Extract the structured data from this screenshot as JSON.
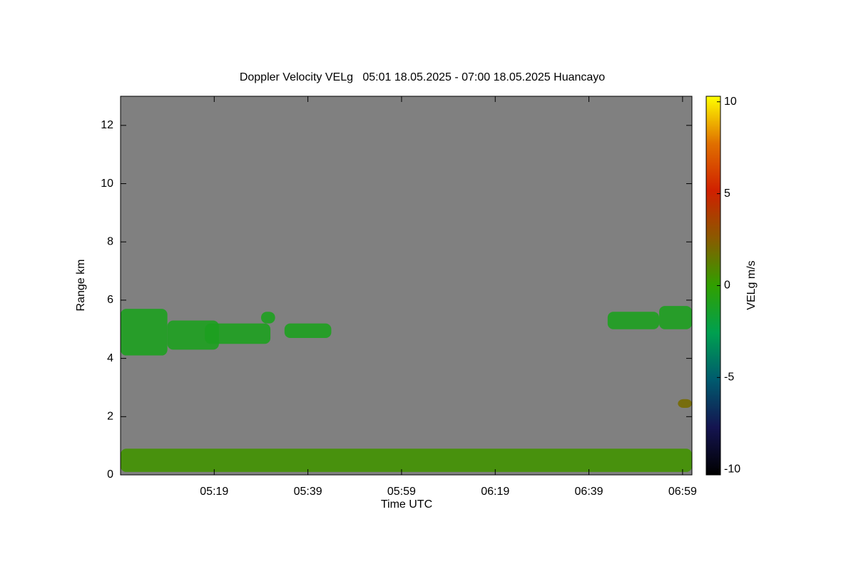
{
  "chart_data": {
    "type": "heatmap",
    "title": "Doppler Velocity VELg   05:01 18.05.2025 - 07:00 18.05.2025 Huancayo",
    "x_label": "Time UTC",
    "y_label": "Range km",
    "colorbar_label": "VELg m/s",
    "xlim": [
      299,
      421
    ],
    "xticks": [
      {
        "value": 319,
        "label": "05:19"
      },
      {
        "value": 339,
        "label": "05:39"
      },
      {
        "value": 359,
        "label": "05:59"
      },
      {
        "value": 379,
        "label": "06:19"
      },
      {
        "value": 399,
        "label": "06:39"
      },
      {
        "value": 419,
        "label": "06:59"
      }
    ],
    "ylim": [
      0,
      13
    ],
    "yticks": [
      0,
      2,
      4,
      6,
      8,
      10,
      12
    ],
    "clim": [
      -10.3,
      10.3
    ],
    "cticks": [
      10,
      5,
      0,
      -5,
      -10
    ],
    "background": "#808080",
    "colormap": [
      "#000000",
      "#141450",
      "#005a6e",
      "#00a050",
      "#30a000",
      "#8a5a00",
      "#d02000",
      "#e07000",
      "#ffff00"
    ],
    "echoes": [
      {
        "x": [
          299,
          309
        ],
        "y": [
          4.1,
          5.7
        ],
        "value": -1
      },
      {
        "x": [
          309,
          320
        ],
        "y": [
          4.3,
          5.3
        ],
        "value": -1
      },
      {
        "x": [
          317,
          331
        ],
        "y": [
          4.5,
          5.2
        ],
        "value": -1
      },
      {
        "x": [
          329,
          332
        ],
        "y": [
          5.2,
          5.6
        ],
        "value": -1
      },
      {
        "x": [
          334,
          344
        ],
        "y": [
          4.7,
          5.2
        ],
        "value": -1
      },
      {
        "x": [
          403,
          414
        ],
        "y": [
          5.0,
          5.6
        ],
        "value": -1
      },
      {
        "x": [
          414,
          421
        ],
        "y": [
          5.0,
          5.8
        ],
        "value": -1
      },
      {
        "x": [
          418,
          421
        ],
        "y": [
          2.3,
          2.6
        ],
        "value": 2
      },
      {
        "x": [
          299,
          421
        ],
        "y": [
          0.1,
          0.9
        ],
        "value": 0.5
      }
    ]
  }
}
